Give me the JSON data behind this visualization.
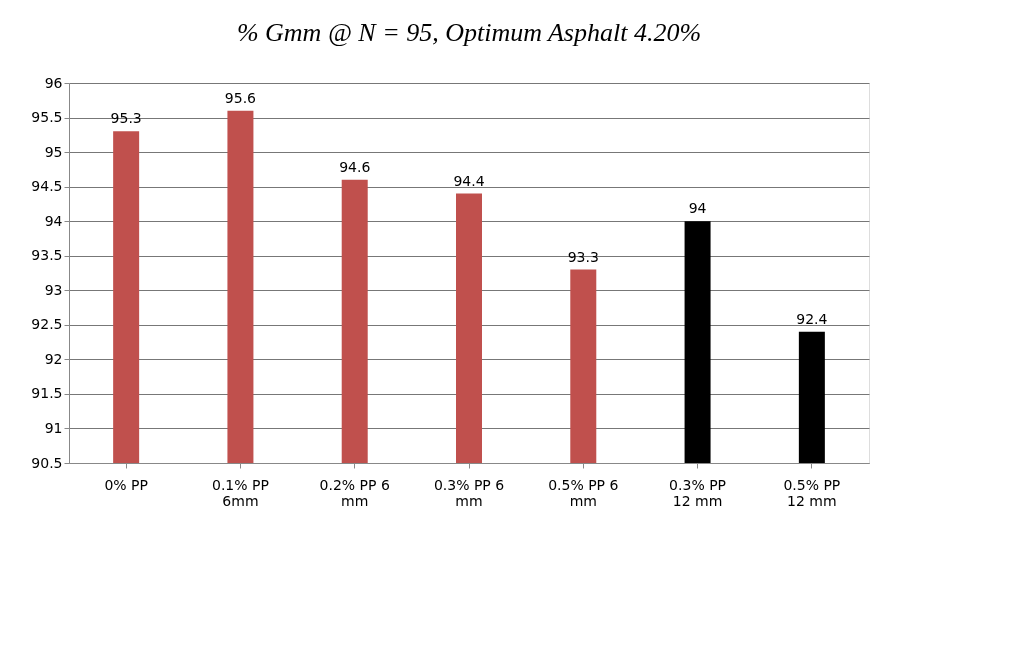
{
  "chart_data": {
    "type": "bar",
    "title": "% Gmm @ N = 95, Optimum Asphalt 4.20%",
    "categories": [
      "0% PP",
      "0.1% PP 6mm",
      "0.2% PP 6 mm",
      "0.3% PP 6 mm",
      "0.5% PP 6 mm",
      "0.3% PP 12 mm",
      "0.5% PP 12 mm"
    ],
    "values": [
      95.3,
      95.6,
      94.6,
      94.4,
      93.3,
      94,
      92.4
    ],
    "colors": [
      "#c0504d",
      "#c0504d",
      "#c0504d",
      "#c0504d",
      "#c0504d",
      "#000000",
      "#000000"
    ],
    "ylim": [
      90.5,
      96
    ],
    "yticks": [
      90.5,
      91,
      91.5,
      92,
      92.5,
      93,
      93.5,
      94,
      94.5,
      95,
      95.5,
      96
    ],
    "grid": "y",
    "data_labels": true
  }
}
